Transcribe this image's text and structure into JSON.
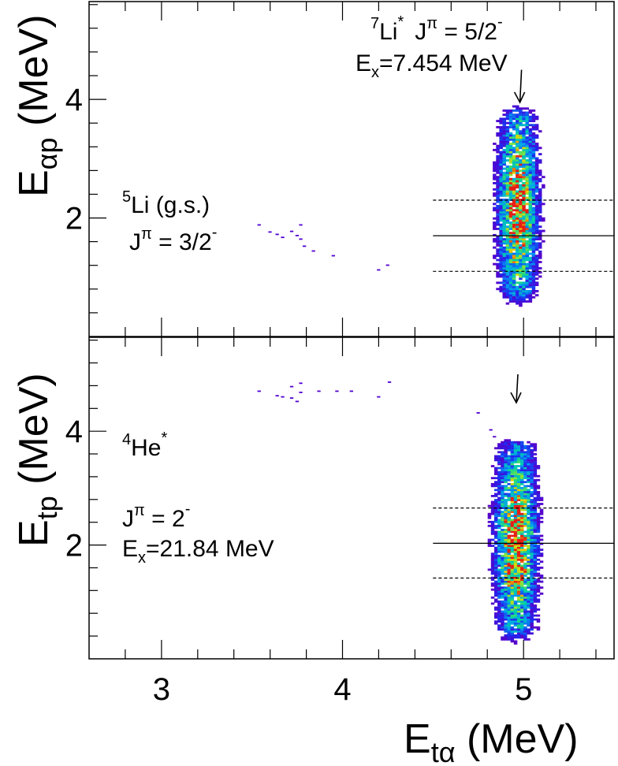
{
  "chart_data": [
    {
      "type": "heatmap",
      "panel": "top",
      "ylabel": {
        "main": "E",
        "sub": "αp",
        "unit": " (MeV)"
      },
      "xlim": [
        2.6,
        5.5
      ],
      "ylim": [
        0.0,
        5.65
      ],
      "yticks": [
        {
          "v": 2,
          "label": "2"
        },
        {
          "v": 4,
          "label": "4"
        }
      ],
      "hlines": [
        {
          "y": 2.3,
          "x_from": 4.5,
          "style": "dashed"
        },
        {
          "y": 1.7,
          "x_from": 4.5,
          "style": "solid"
        },
        {
          "y": 1.1,
          "x_from": 4.5,
          "style": "dashed"
        }
      ],
      "arrow": {
        "x": 4.98,
        "y_top": 4.5,
        "y_bottom": 3.95
      },
      "annotations": {
        "li7": {
          "sup": "7",
          "name": "Li",
          "star": "*",
          "jpi_j": "J",
          "jpi_pi": "π",
          "jpi_val": " = 5/2",
          "jpi_sign": "-"
        },
        "li7_ex": {
          "e": "E",
          "sub": "x",
          "rest": "=7.454 MeV"
        },
        "li5": {
          "sup": "5",
          "name": "Li (g.s.)"
        },
        "li5_jpi": {
          "j": "J",
          "pi": "π",
          "val": " = 3/2",
          "sign": "-"
        }
      },
      "cluster": {
        "x_center": 4.96,
        "x_sigma": 0.07,
        "y_min": 0.4,
        "y_max": 3.95,
        "peak_y": 2.2
      },
      "scatter_cells": [
        [
          3.53,
          1.86
        ],
        [
          3.59,
          1.74
        ],
        [
          3.63,
          1.7
        ],
        [
          3.66,
          1.65
        ],
        [
          3.71,
          1.75
        ],
        [
          3.74,
          1.68
        ],
        [
          3.76,
          1.86
        ],
        [
          3.76,
          1.62
        ],
        [
          3.78,
          1.5
        ],
        [
          3.83,
          1.42
        ],
        [
          3.94,
          1.34
        ],
        [
          4.19,
          1.1
        ],
        [
          4.24,
          1.18
        ]
      ]
    },
    {
      "type": "heatmap",
      "panel": "bottom",
      "ylabel": {
        "main": "E",
        "sub": "tp",
        "unit": " (MeV)"
      },
      "xlabel": {
        "main": "E",
        "sub": "tα",
        "unit": " (MeV)"
      },
      "xlim": [
        2.6,
        5.5
      ],
      "ylim": [
        0.0,
        5.65
      ],
      "xticks": [
        {
          "v": 3,
          "label": "3"
        },
        {
          "v": 4,
          "label": "4"
        },
        {
          "v": 5,
          "label": "5"
        }
      ],
      "yticks": [
        {
          "v": 2,
          "label": "2"
        },
        {
          "v": 4,
          "label": "4"
        }
      ],
      "hlines": [
        {
          "y": 2.65,
          "x_from": 4.5,
          "style": "dashed"
        },
        {
          "y": 2.03,
          "x_from": 4.5,
          "style": "solid"
        },
        {
          "y": 1.42,
          "x_from": 4.5,
          "style": "dashed"
        }
      ],
      "arrow": {
        "x": 4.96,
        "y_top": 5.0,
        "y_bottom": 4.5
      },
      "annotations": {
        "he4": {
          "sup": "4",
          "name": "He",
          "star": "*"
        },
        "he4_jpi": {
          "j": "J",
          "pi": "π",
          "val": " = 2",
          "sign": "-"
        },
        "he4_ex": {
          "e": "E",
          "sub": "x",
          "rest": "=21.84 MeV"
        }
      },
      "cluster": {
        "x_center": 4.95,
        "x_sigma": 0.075,
        "y_min": 0.15,
        "y_max": 3.95,
        "peak_y": 2.05
      },
      "scatter_cells": [
        [
          3.53,
          4.68
        ],
        [
          3.63,
          4.6
        ],
        [
          3.66,
          4.58
        ],
        [
          3.71,
          4.56
        ],
        [
          3.74,
          4.5
        ],
        [
          3.76,
          4.66
        ],
        [
          3.76,
          4.82
        ],
        [
          3.71,
          4.76
        ],
        [
          3.86,
          4.68
        ],
        [
          3.96,
          4.68
        ],
        [
          4.04,
          4.68
        ],
        [
          4.19,
          4.58
        ],
        [
          4.25,
          4.84
        ],
        [
          4.74,
          4.3
        ],
        [
          4.81,
          4.0
        ],
        [
          4.83,
          3.88
        ]
      ]
    }
  ]
}
